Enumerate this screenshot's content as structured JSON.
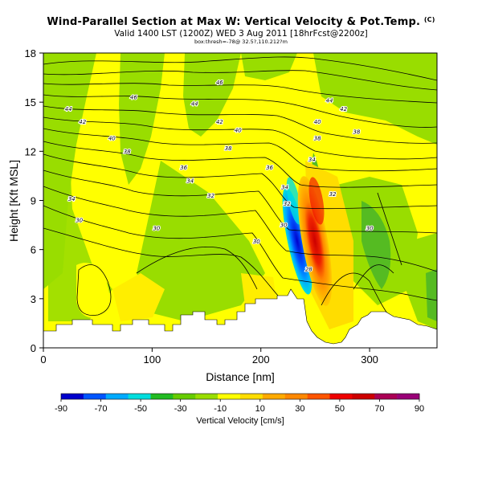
{
  "title": "Wind-Parallel Section at Max W: Vertical Velocity & Pot.Temp.",
  "title_mark": "(C)",
  "subtitle": "Valid 1400 LST (1200Z) WED 3 Aug 2011 [18hrFcst@2200z]",
  "sub_note": "box:thresh=-78@ 32.5?,110.212?m",
  "colors": {
    "terrain": "#ffffff",
    "contour": "#000000",
    "bg_yellow": "#ffff00"
  },
  "chart_data": {
    "type": "heatmap",
    "xlabel": "Distance [nm]",
    "ylabel": "Height [Kft MSL]",
    "xlim": [
      0,
      362
    ],
    "ylim": [
      0,
      18
    ],
    "xticks": [
      "0",
      "100",
      "200",
      "300"
    ],
    "yticks": [
      "0",
      "3",
      "6",
      "9",
      "12",
      "15",
      "18"
    ],
    "colorbar": {
      "label": "Vertical Velocity [cm/s]",
      "ticks": [
        "-90",
        "-70",
        "-50",
        "-30",
        "-10",
        "10",
        "30",
        "50",
        "70",
        "90"
      ],
      "colors": [
        "#0000cc",
        "#0055ff",
        "#00aaff",
        "#00dddd",
        "#22bb22",
        "#66cc00",
        "#99dd00",
        "#ffff00",
        "#ffdd00",
        "#ffaa00",
        "#ff8800",
        "#ff5500",
        "#ee0000",
        "#cc0000",
        "#aa0055",
        "#990077"
      ]
    },
    "contour_labels": [
      {
        "text": "46",
        "x": 83,
        "y": 15.3
      },
      {
        "text": "46",
        "x": 162,
        "y": 16.2
      },
      {
        "text": "44",
        "x": 263,
        "y": 15.1
      },
      {
        "text": "44",
        "x": 23,
        "y": 14.6
      },
      {
        "text": "44",
        "x": 139,
        "y": 14.9
      },
      {
        "text": "42",
        "x": 276,
        "y": 14.6
      },
      {
        "text": "42",
        "x": 36,
        "y": 13.8
      },
      {
        "text": "42",
        "x": 162,
        "y": 13.8
      },
      {
        "text": "40",
        "x": 252,
        "y": 13.8
      },
      {
        "text": "40",
        "x": 63,
        "y": 12.8
      },
      {
        "text": "40",
        "x": 179,
        "y": 13.3
      },
      {
        "text": "38",
        "x": 288,
        "y": 13.2
      },
      {
        "text": "38",
        "x": 252,
        "y": 12.8
      },
      {
        "text": "38",
        "x": 77,
        "y": 12.0
      },
      {
        "text": "38",
        "x": 170,
        "y": 12.2
      },
      {
        "text": "36",
        "x": 129,
        "y": 11.0
      },
      {
        "text": "36",
        "x": 208,
        "y": 11.0
      },
      {
        "text": "34",
        "x": 135,
        "y": 10.2
      },
      {
        "text": "34",
        "x": 222,
        "y": 9.8
      },
      {
        "text": "34",
        "x": 247,
        "y": 11.5
      },
      {
        "text": "32",
        "x": 154,
        "y": 9.3
      },
      {
        "text": "32",
        "x": 224,
        "y": 8.8
      },
      {
        "text": "32",
        "x": 266,
        "y": 9.4
      },
      {
        "text": "34",
        "x": 26,
        "y": 9.1
      },
      {
        "text": "30",
        "x": 221,
        "y": 7.5
      },
      {
        "text": "30",
        "x": 300,
        "y": 7.3
      },
      {
        "text": "30",
        "x": 33,
        "y": 7.8
      },
      {
        "text": "30",
        "x": 104,
        "y": 7.3
      },
      {
        "text": "30",
        "x": 196,
        "y": 6.5
      },
      {
        "text": "28",
        "x": 244,
        "y": 4.8
      }
    ]
  }
}
